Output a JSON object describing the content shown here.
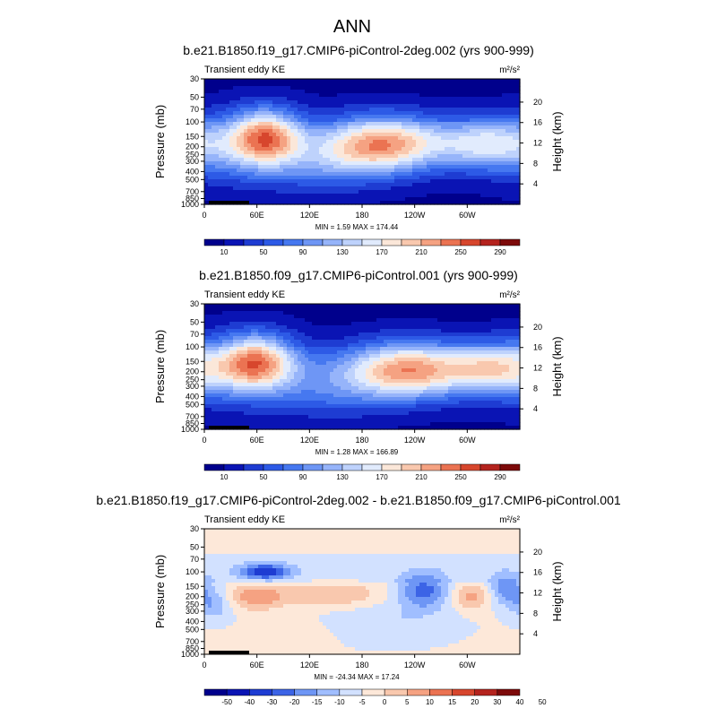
{
  "figure": {
    "title": "ANN"
  },
  "colors": {
    "seq": [
      "#00008c",
      "#0a14b4",
      "#1e3cd2",
      "#2d5ae6",
      "#4678f0",
      "#6e96f5",
      "#96b4fa",
      "#bed2fc",
      "#e1ebfd",
      "#fbe7d9",
      "#f9c8ae",
      "#f5a282",
      "#eb7352",
      "#d7462d",
      "#b4231e",
      "#7d0a0a"
    ],
    "div": [
      "#00008c",
      "#0a14b4",
      "#1e3cd2",
      "#3c64e6",
      "#6e96f5",
      "#a0beff",
      "#d2e1ff",
      "#fde8d9",
      "#f9c8ae",
      "#f5a282",
      "#eb7352",
      "#d7462d",
      "#b4231e",
      "#7d0a0a"
    ]
  },
  "chart_data": [
    {
      "type": "heatmap",
      "title": "b.e21.B1850.f19_g17.CMIP6-piControl-2deg.002 (yrs 900-999)",
      "left_label": "Transient eddy KE",
      "units": "m²/s²",
      "ylabel": "Pressure (mb)",
      "y2label": "Height (km)",
      "xticks": [
        "0",
        "60E",
        "120E",
        "180",
        "120W",
        "60W"
      ],
      "yticks": [
        "30",
        "50",
        "70",
        "100",
        "150",
        "200",
        "250",
        "300",
        "400",
        "500",
        "700",
        "850",
        "1000"
      ],
      "y2ticks": [
        "20",
        "16",
        "12",
        "8",
        "4"
      ],
      "minmax": "MIN =   1.59  MAX = 174.44",
      "colorbar": [
        "10",
        "50",
        "90",
        "130",
        "170",
        "210",
        "250",
        "290"
      ],
      "scale": "seq",
      "features": [
        {
          "lon": 70,
          "p": 150,
          "sx": 28,
          "sp": 0.55,
          "a": 170
        },
        {
          "lon": 40,
          "p": 200,
          "sx": 60,
          "sp": 0.7,
          "a": 70
        },
        {
          "lon": 215,
          "p": 180,
          "sx": 45,
          "sp": 0.55,
          "a": 140
        },
        {
          "lon": 180,
          "p": 200,
          "sx": 45,
          "sp": 0.6,
          "a": 80
        },
        {
          "lon": 320,
          "p": 180,
          "sx": 40,
          "sp": 0.5,
          "a": 110
        },
        {
          "lon": 140,
          "p": 300,
          "sx": 40,
          "sp": 0.5,
          "a": 30
        },
        {
          "lon": 120,
          "p": 450,
          "sx": 60,
          "sp": 0.4,
          "a": 20
        }
      ]
    },
    {
      "type": "heatmap",
      "title": "b.e21.B1850.f09_g17.CMIP6-piControl.001 (yrs 900-999)",
      "left_label": "Transient eddy KE",
      "units": "m²/s²",
      "ylabel": "Pressure (mb)",
      "y2label": "Height (km)",
      "xticks": [
        "0",
        "60E",
        "120E",
        "180",
        "120W",
        "60W"
      ],
      "yticks": [
        "30",
        "50",
        "70",
        "100",
        "150",
        "200",
        "250",
        "300",
        "400",
        "500",
        "700",
        "850",
        "1000"
      ],
      "y2ticks": [
        "20",
        "16",
        "12",
        "8",
        "4"
      ],
      "minmax": "MIN =   1.28  MAX = 166.89",
      "colorbar": [
        "10",
        "50",
        "90",
        "130",
        "170",
        "210",
        "250",
        "290"
      ],
      "scale": "seq",
      "features": [
        {
          "lon": 60,
          "p": 150,
          "sx": 30,
          "sp": 0.55,
          "a": 165
        },
        {
          "lon": 40,
          "p": 200,
          "sx": 55,
          "sp": 0.7,
          "a": 70
        },
        {
          "lon": 245,
          "p": 190,
          "sx": 45,
          "sp": 0.55,
          "a": 150
        },
        {
          "lon": 200,
          "p": 200,
          "sx": 45,
          "sp": 0.6,
          "a": 80
        },
        {
          "lon": 330,
          "p": 180,
          "sx": 35,
          "sp": 0.5,
          "a": 120
        },
        {
          "lon": 140,
          "p": 300,
          "sx": 40,
          "sp": 0.5,
          "a": 30
        },
        {
          "lon": 140,
          "p": 500,
          "sx": 50,
          "sp": 0.4,
          "a": 20
        }
      ]
    },
    {
      "type": "heatmap",
      "title": "b.e21.B1850.f19_g17.CMIP6-piControl-2deg.002 - b.e21.B1850.f09_g17.CMIP6-piControl.001",
      "left_label": "Transient eddy KE",
      "units": "m²/s²",
      "ylabel": "Pressure (mb)",
      "y2label": "Height (km)",
      "xticks": [
        "0",
        "60E",
        "120E",
        "180",
        "120W",
        "60W"
      ],
      "yticks": [
        "30",
        "50",
        "70",
        "100",
        "150",
        "200",
        "250",
        "300",
        "400",
        "500",
        "700",
        "850",
        "1000"
      ],
      "y2ticks": [
        "20",
        "16",
        "12",
        "8",
        "4"
      ],
      "minmax": "MIN = -24.34  MAX =  17.24",
      "colorbar": [
        "-50",
        "-40",
        "-30",
        "-20",
        "-15",
        "-10",
        "-5",
        "0",
        "5",
        "10",
        "15",
        "20",
        "30",
        "40",
        "50"
      ],
      "scale": "div",
      "features": [
        {
          "lon": 70,
          "p": 100,
          "sx": 20,
          "sp": 0.15,
          "a": -24
        },
        {
          "lon": 60,
          "p": 200,
          "sx": 22,
          "sp": 0.25,
          "a": 14
        },
        {
          "lon": 150,
          "p": 190,
          "sx": 40,
          "sp": 0.25,
          "a": 9
        },
        {
          "lon": 250,
          "p": 170,
          "sx": 20,
          "sp": 0.35,
          "a": -18
        },
        {
          "lon": 305,
          "p": 200,
          "sx": 15,
          "sp": 0.25,
          "a": 12
        },
        {
          "lon": 345,
          "p": 160,
          "sx": 15,
          "sp": 0.3,
          "a": -14
        },
        {
          "lon": 10,
          "p": 250,
          "sx": 15,
          "sp": 0.3,
          "a": -10
        },
        {
          "lon": 210,
          "p": 400,
          "sx": 50,
          "sp": 0.4,
          "a": -5
        },
        {
          "lon": 100,
          "p": 600,
          "sx": 30,
          "sp": 0.35,
          "a": 3
        }
      ]
    }
  ]
}
